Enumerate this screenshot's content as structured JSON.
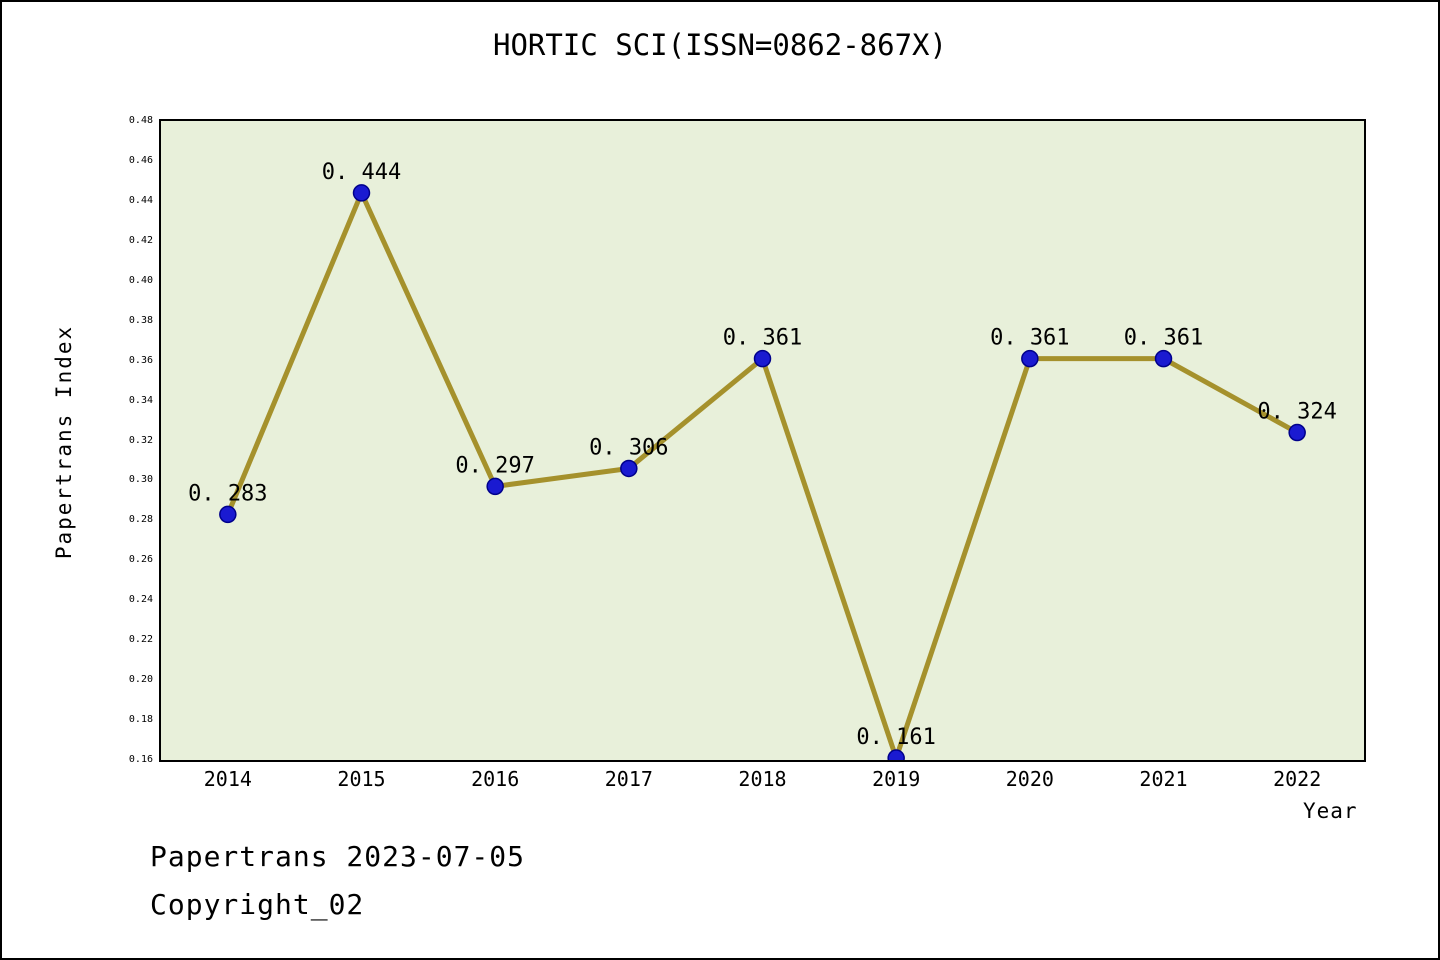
{
  "chart_data": {
    "type": "line",
    "title": "HORTIC SCI(ISSN=0862-867X)",
    "xlabel": "Year",
    "ylabel": "Papertrans Index",
    "x": [
      "2014",
      "2015",
      "2016",
      "2017",
      "2018",
      "2019",
      "2020",
      "2021",
      "2022"
    ],
    "values": [
      0.283,
      0.444,
      0.297,
      0.306,
      0.361,
      0.161,
      0.361,
      0.361,
      0.324
    ],
    "point_labels": [
      "0. 283",
      "0. 444",
      "0. 297",
      "0. 306",
      "0. 361",
      "0. 161",
      "0. 361",
      "0. 361",
      "0. 324"
    ],
    "ylim": [
      0.16,
      0.48
    ],
    "ytick_step": 0.02,
    "grid": false,
    "legend": "none",
    "colors": {
      "line": "#a5912c",
      "marker": "#1a1ad1",
      "marker_edge": "#00008b",
      "plot_background": "#e8f0da",
      "text": "#000000"
    }
  },
  "footer": {
    "line1": "Papertrans 2023-07-05",
    "line2": "Copyright_02"
  }
}
